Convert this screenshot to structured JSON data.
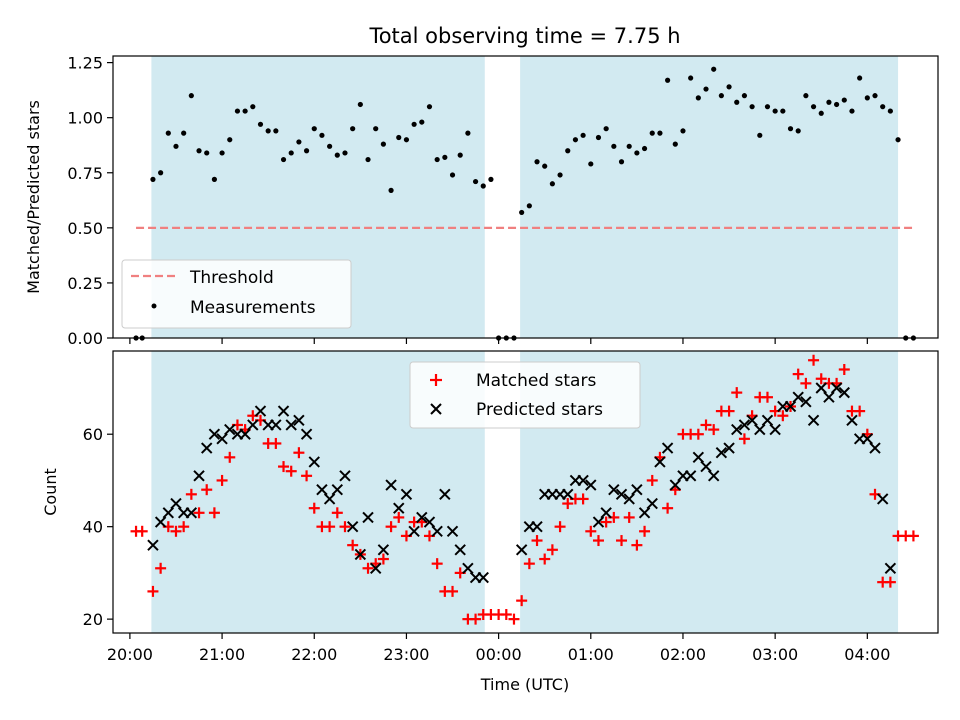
{
  "title": "Total observing time = 7.75 h",
  "colors": {
    "observing_window": "#add8e6",
    "threshold": "#f08080",
    "measurements": "#000000",
    "matched": "#ff0000",
    "predicted": "#000000"
  },
  "chart_data": [
    {
      "type": "scatter",
      "ylabel": "Matched/Predicted stars",
      "xlabel": "",
      "xlim": [
        "2023-01-01T19:49",
        "2023-01-02T04:46"
      ],
      "ylim": [
        0,
        1.28
      ],
      "yticks": [
        "0.00",
        "0.25",
        "0.50",
        "0.75",
        "1.00",
        "1.25"
      ],
      "legend_position": "lower-left",
      "observing_windows": [
        [
          "2023-01-01T20:14",
          "2023-01-01T23:51"
        ],
        [
          "2023-01-02T00:14",
          "2023-01-02T04:20"
        ]
      ],
      "threshold": {
        "name": "Threshold",
        "value": 0.5,
        "x_range": [
          "2023-01-01T20:04",
          "2023-01-02T04:30"
        ]
      },
      "series": [
        {
          "name": "Measurements",
          "marker": "dot",
          "x": [
            "20:04",
            "20:08",
            "20:15",
            "20:20",
            "20:25",
            "20:30",
            "20:35",
            "20:40",
            "20:45",
            "20:50",
            "20:55",
            "21:00",
            "21:05",
            "21:10",
            "21:15",
            "21:20",
            "21:25",
            "21:30",
            "21:35",
            "21:40",
            "21:45",
            "21:50",
            "21:55",
            "22:00",
            "22:05",
            "22:10",
            "22:15",
            "22:20",
            "22:25",
            "22:30",
            "22:35",
            "22:40",
            "22:45",
            "22:50",
            "22:55",
            "23:00",
            "23:05",
            "23:10",
            "23:15",
            "23:20",
            "23:25",
            "23:30",
            "23:35",
            "23:40",
            "23:45",
            "23:50",
            "23:55",
            "00:00",
            "00:05",
            "00:10",
            "00:15",
            "00:20",
            "00:25",
            "00:30",
            "00:35",
            "00:40",
            "00:45",
            "00:50",
            "00:55",
            "01:00",
            "01:05",
            "01:10",
            "01:15",
            "01:20",
            "01:25",
            "01:30",
            "01:35",
            "01:40",
            "01:45",
            "01:50",
            "01:55",
            "02:00",
            "02:05",
            "02:10",
            "02:15",
            "02:20",
            "02:25",
            "02:30",
            "02:35",
            "02:40",
            "02:45",
            "02:50",
            "02:55",
            "03:00",
            "03:05",
            "03:10",
            "03:15",
            "03:20",
            "03:25",
            "03:30",
            "03:35",
            "03:40",
            "03:45",
            "03:50",
            "03:55",
            "04:00",
            "04:05",
            "04:10",
            "04:15",
            "04:20",
            "04:25",
            "04:30"
          ],
          "y": [
            0.0,
            0.0,
            0.72,
            0.75,
            0.93,
            0.87,
            0.93,
            1.1,
            0.85,
            0.84,
            0.72,
            0.84,
            0.9,
            1.03,
            1.03,
            1.05,
            0.97,
            0.94,
            0.94,
            0.81,
            0.84,
            0.89,
            0.85,
            0.95,
            0.92,
            0.87,
            0.83,
            0.84,
            0.95,
            1.06,
            0.81,
            0.95,
            0.88,
            0.67,
            0.91,
            0.9,
            0.97,
            0.98,
            1.05,
            0.81,
            0.82,
            0.74,
            0.83,
            0.93,
            0.71,
            0.69,
            0.72,
            0.0,
            0.0,
            0.0,
            0.57,
            0.6,
            0.8,
            0.78,
            0.7,
            0.74,
            0.85,
            0.9,
            0.92,
            0.79,
            0.91,
            0.95,
            0.87,
            0.8,
            0.87,
            0.84,
            0.86,
            0.93,
            0.93,
            1.17,
            0.88,
            0.94,
            1.18,
            1.09,
            1.13,
            1.22,
            1.1,
            1.14,
            1.07,
            1.1,
            1.05,
            0.92,
            1.05,
            1.03,
            1.03,
            0.95,
            0.94,
            1.1,
            1.05,
            1.02,
            1.07,
            1.06,
            1.08,
            1.03,
            1.18,
            1.09,
            1.1,
            1.05,
            1.03,
            0.9,
            0.0,
            0.0
          ]
        }
      ]
    },
    {
      "type": "scatter",
      "ylabel": "Count",
      "xlabel": "Time (UTC)",
      "xticks": [
        "20:00",
        "21:00",
        "22:00",
        "23:00",
        "00:00",
        "01:00",
        "02:00",
        "03:00",
        "04:00"
      ],
      "xlim": [
        "2023-01-01T19:49",
        "2023-01-02T04:46"
      ],
      "ylim": [
        17,
        78
      ],
      "yticks": [
        "20",
        "40",
        "60"
      ],
      "legend_position": "upper-center",
      "observing_windows": [
        [
          "2023-01-01T20:14",
          "2023-01-01T23:51"
        ],
        [
          "2023-01-02T00:14",
          "2023-01-02T04:20"
        ]
      ],
      "series": [
        {
          "name": "Matched stars",
          "marker": "plus",
          "x": [
            "20:04",
            "20:08",
            "20:15",
            "20:20",
            "20:25",
            "20:30",
            "20:35",
            "20:40",
            "20:45",
            "20:50",
            "20:55",
            "21:00",
            "21:05",
            "21:10",
            "21:15",
            "21:20",
            "21:25",
            "21:30",
            "21:35",
            "21:40",
            "21:45",
            "21:50",
            "21:55",
            "22:00",
            "22:05",
            "22:10",
            "22:15",
            "22:20",
            "22:25",
            "22:30",
            "22:35",
            "22:40",
            "22:45",
            "22:50",
            "22:55",
            "23:00",
            "23:05",
            "23:10",
            "23:15",
            "23:20",
            "23:25",
            "23:30",
            "23:35",
            "23:40",
            "23:45",
            "23:50",
            "23:55",
            "00:00",
            "00:05",
            "00:10",
            "00:15",
            "00:20",
            "00:25",
            "00:30",
            "00:35",
            "00:40",
            "00:45",
            "00:50",
            "00:55",
            "01:00",
            "01:05",
            "01:10",
            "01:15",
            "01:20",
            "01:25",
            "01:30",
            "01:35",
            "01:40",
            "01:45",
            "01:50",
            "01:55",
            "02:00",
            "02:05",
            "02:10",
            "02:15",
            "02:20",
            "02:25",
            "02:30",
            "02:35",
            "02:40",
            "02:45",
            "02:50",
            "02:55",
            "03:00",
            "03:05",
            "03:10",
            "03:15",
            "03:20",
            "03:25",
            "03:30",
            "03:35",
            "03:40",
            "03:45",
            "03:50",
            "03:55",
            "04:00",
            "04:05",
            "04:10",
            "04:15",
            "04:20",
            "04:25",
            "04:30"
          ],
          "y": [
            39,
            39,
            26,
            31,
            40,
            39,
            40,
            47,
            43,
            48,
            43,
            50,
            55,
            62,
            61,
            64,
            63,
            58,
            58,
            53,
            52,
            56,
            51,
            44,
            40,
            40,
            43,
            40,
            36,
            34,
            31,
            32,
            33,
            40,
            42,
            38,
            41,
            41,
            38,
            32,
            26,
            26,
            30,
            20,
            20,
            21,
            21,
            21,
            21,
            20,
            24,
            32,
            37,
            33,
            35,
            40,
            45,
            46,
            46,
            39,
            37,
            41,
            42,
            37,
            42,
            36,
            39,
            50,
            55,
            44,
            48,
            60,
            60,
            60,
            62,
            61,
            65,
            65,
            69,
            59,
            64,
            68,
            68,
            65,
            64,
            66,
            73,
            71,
            76,
            72,
            71,
            71,
            74,
            65,
            65,
            60,
            47,
            28,
            28,
            38,
            38,
            38
          ],
          "note": ""
        },
        {
          "name": "Predicted stars",
          "marker": "x",
          "x": [
            "20:15",
            "20:20",
            "20:25",
            "20:30",
            "20:35",
            "20:40",
            "20:45",
            "20:50",
            "20:55",
            "21:00",
            "21:05",
            "21:10",
            "21:15",
            "21:20",
            "21:25",
            "21:30",
            "21:35",
            "21:40",
            "21:45",
            "21:50",
            "21:55",
            "22:00",
            "22:05",
            "22:10",
            "22:15",
            "22:20",
            "22:25",
            "22:30",
            "22:35",
            "22:40",
            "22:45",
            "22:50",
            "22:55",
            "23:00",
            "23:05",
            "23:10",
            "23:15",
            "23:20",
            "23:25",
            "23:30",
            "23:35",
            "23:40",
            "23:45",
            "23:50",
            "00:15",
            "00:20",
            "00:25",
            "00:30",
            "00:35",
            "00:40",
            "00:45",
            "00:50",
            "00:55",
            "01:00",
            "01:05",
            "01:10",
            "01:15",
            "01:20",
            "01:25",
            "01:30",
            "01:35",
            "01:40",
            "01:45",
            "01:50",
            "01:55",
            "02:00",
            "02:05",
            "02:10",
            "02:15",
            "02:20",
            "02:25",
            "02:30",
            "02:35",
            "02:40",
            "02:45",
            "02:50",
            "02:55",
            "03:00",
            "03:05",
            "03:10",
            "03:15",
            "03:20",
            "03:25",
            "03:30",
            "03:35",
            "03:40",
            "03:45",
            "03:50",
            "03:55",
            "04:00",
            "04:05",
            "04:10",
            "04:15"
          ],
          "y": [
            36,
            41,
            43,
            45,
            43,
            43,
            51,
            57,
            60,
            59,
            61,
            60,
            60,
            62,
            65,
            62,
            62,
            65,
            62,
            63,
            60,
            54,
            48,
            46,
            48,
            51,
            40,
            34,
            42,
            31,
            35,
            49,
            44,
            47,
            39,
            42,
            41,
            39,
            47,
            39,
            35,
            31,
            29,
            29,
            35,
            40,
            40,
            47,
            47,
            47,
            47,
            50,
            50,
            49,
            41,
            43,
            48,
            47,
            46,
            48,
            43,
            45,
            54,
            57,
            49,
            51,
            51,
            55,
            53,
            51,
            56,
            57,
            61,
            62,
            63,
            61,
            63,
            61,
            66,
            66,
            68,
            67,
            63,
            70,
            68,
            70,
            69,
            63,
            59,
            59,
            57,
            46,
            31
          ]
        }
      ]
    }
  ]
}
